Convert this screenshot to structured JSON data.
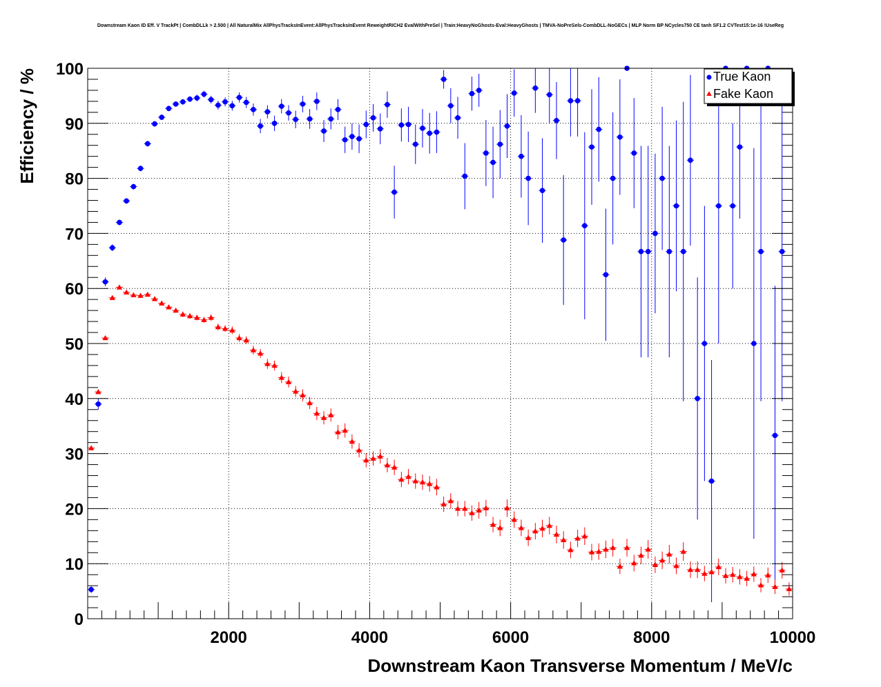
{
  "chart_data": {
    "type": "scatter",
    "title": "Downstream Kaon ID Eff. V TrackPt | CombDLLk > 2.500 | All NaturalMix AllPhysTracksInEvent:AllPhysTracksInEvent ReweightRICH2 EvalWithPreSel | Train:HeavyNoGhosts-Eval:HeavyGhosts | TMVA-NoPreSels-CombDLL-NoGECs | MLP Norm BP NCycles750 CE tanh SF1.2 CVTest15:1e-16 !UseReg",
    "xlabel": "Downstream Kaon Transverse Momentum / MeV/c",
    "ylabel": "Efficiency / %",
    "xlim": [
      0,
      10000
    ],
    "ylim": [
      0,
      100
    ],
    "x_ticks": [
      2000,
      4000,
      6000,
      8000,
      10000
    ],
    "y_ticks": [
      0,
      10,
      20,
      30,
      40,
      50,
      60,
      70,
      80,
      90,
      100
    ],
    "grid": true,
    "legend_position": "top-right",
    "series": [
      {
        "name": "True Kaon",
        "color": "#0000ff",
        "marker": "circle",
        "points": [
          [
            50,
            5.3,
            0.6
          ],
          [
            150,
            39.0,
            1.0
          ],
          [
            250,
            61.2,
            0.8
          ],
          [
            350,
            67.4,
            0.6
          ],
          [
            450,
            72.0,
            0.5
          ],
          [
            550,
            75.9,
            0.5
          ],
          [
            650,
            78.5,
            0.5
          ],
          [
            750,
            81.8,
            0.5
          ],
          [
            850,
            86.3,
            0.5
          ],
          [
            950,
            89.9,
            0.5
          ],
          [
            1050,
            91.1,
            0.5
          ],
          [
            1150,
            92.7,
            0.5
          ],
          [
            1250,
            93.5,
            0.5
          ],
          [
            1350,
            93.9,
            0.5
          ],
          [
            1450,
            94.4,
            0.5
          ],
          [
            1550,
            94.6,
            0.6
          ],
          [
            1650,
            95.3,
            0.6
          ],
          [
            1750,
            94.3,
            0.7
          ],
          [
            1850,
            93.3,
            0.8
          ],
          [
            1950,
            93.9,
            0.8
          ],
          [
            2050,
            93.2,
            0.9
          ],
          [
            2150,
            94.7,
            0.9
          ],
          [
            2250,
            93.8,
            1.0
          ],
          [
            2350,
            92.5,
            1.1
          ],
          [
            2450,
            89.5,
            1.3
          ],
          [
            2550,
            92.1,
            1.2
          ],
          [
            2650,
            90.0,
            1.4
          ],
          [
            2750,
            93.1,
            1.3
          ],
          [
            2850,
            91.9,
            1.4
          ],
          [
            2950,
            90.7,
            1.6
          ],
          [
            3050,
            93.5,
            1.5
          ],
          [
            3150,
            90.8,
            1.8
          ],
          [
            3250,
            94.0,
            1.6
          ],
          [
            3350,
            88.6,
            2.0
          ],
          [
            3450,
            90.8,
            1.9
          ],
          [
            3550,
            92.5,
            1.9
          ],
          [
            3650,
            87.0,
            2.4
          ],
          [
            3750,
            87.6,
            2.4
          ],
          [
            3850,
            87.2,
            2.6
          ],
          [
            3950,
            89.8,
            2.5
          ],
          [
            4050,
            91.0,
            2.5
          ],
          [
            4150,
            89.0,
            2.8
          ],
          [
            4250,
            93.4,
            2.4
          ],
          [
            4350,
            77.5,
            4.8
          ],
          [
            4450,
            89.7,
            3.0
          ],
          [
            4550,
            89.8,
            3.2
          ],
          [
            4650,
            86.2,
            3.6
          ],
          [
            4750,
            89.1,
            3.5
          ],
          [
            4850,
            88.2,
            3.7
          ],
          [
            4950,
            88.4,
            3.8
          ],
          [
            5050,
            98.0,
            1.7
          ],
          [
            5150,
            93.2,
            3.2
          ],
          [
            5250,
            91.0,
            3.8
          ],
          [
            5350,
            80.4,
            6.0
          ],
          [
            5450,
            95.4,
            3.1
          ],
          [
            5550,
            96.0,
            3.0
          ],
          [
            5650,
            84.6,
            6.0
          ],
          [
            5750,
            82.9,
            6.5
          ],
          [
            5850,
            86.2,
            6.2
          ],
          [
            5950,
            89.5,
            5.8
          ],
          [
            6050,
            95.5,
            4.3
          ],
          [
            6150,
            84.0,
            7.5
          ],
          [
            6250,
            80.0,
            8.5
          ],
          [
            6350,
            96.4,
            4.5
          ],
          [
            6450,
            77.8,
            9.5
          ],
          [
            6550,
            95.2,
            5.2
          ],
          [
            6650,
            90.5,
            7.0
          ],
          [
            6750,
            68.8,
            11.8
          ],
          [
            6850,
            94.1,
            6.5
          ],
          [
            6950,
            94.1,
            6.5
          ],
          [
            7050,
            71.4,
            17.0
          ],
          [
            7150,
            85.7,
            10.5
          ],
          [
            7250,
            88.9,
            9.5
          ],
          [
            7350,
            62.5,
            12.0
          ],
          [
            7450,
            80.0,
            12.0
          ],
          [
            7550,
            87.5,
            10.5
          ],
          [
            7650,
            100.0,
            0.0
          ],
          [
            7750,
            84.6,
            10.0
          ],
          [
            7850,
            66.7,
            19.2
          ],
          [
            7950,
            66.7,
            19.2
          ],
          [
            8050,
            70.0,
            14.5
          ],
          [
            8150,
            80.0,
            13.0
          ],
          [
            8250,
            66.7,
            19.2
          ],
          [
            8350,
            75.0,
            15.5
          ],
          [
            8450,
            66.7,
            27.2
          ],
          [
            8550,
            83.3,
            15.5
          ],
          [
            8650,
            40.0,
            22.0
          ],
          [
            8750,
            50.0,
            25.0
          ],
          [
            8850,
            25.0,
            22.0
          ],
          [
            8950,
            75.0,
            25.0
          ],
          [
            9050,
            100.0,
            0.0
          ],
          [
            9150,
            75.0,
            15.0
          ],
          [
            9250,
            85.7,
            13.0
          ],
          [
            9350,
            100.0,
            0.0
          ],
          [
            9450,
            50.0,
            35.5
          ],
          [
            9550,
            66.7,
            27.2
          ],
          [
            9650,
            100.0,
            0.0
          ],
          [
            9750,
            33.3,
            27.2
          ],
          [
            9850,
            66.7,
            27.2
          ]
        ]
      },
      {
        "name": "Fake Kaon",
        "color": "#ff0000",
        "marker": "triangle",
        "points": [
          [
            50,
            31.0,
            0.2
          ],
          [
            150,
            41.2,
            0.3
          ],
          [
            250,
            51.0,
            0.3
          ],
          [
            350,
            58.3,
            0.3
          ],
          [
            450,
            60.2,
            0.3
          ],
          [
            550,
            59.3,
            0.3
          ],
          [
            650,
            58.8,
            0.3
          ],
          [
            750,
            58.7,
            0.4
          ],
          [
            850,
            58.9,
            0.4
          ],
          [
            950,
            58.1,
            0.4
          ],
          [
            1050,
            57.3,
            0.4
          ],
          [
            1150,
            56.6,
            0.4
          ],
          [
            1250,
            56.0,
            0.4
          ],
          [
            1350,
            55.3,
            0.5
          ],
          [
            1450,
            55.0,
            0.5
          ],
          [
            1550,
            54.7,
            0.5
          ],
          [
            1650,
            54.3,
            0.5
          ],
          [
            1750,
            54.7,
            0.6
          ],
          [
            1850,
            53.0,
            0.6
          ],
          [
            1950,
            52.7,
            0.6
          ],
          [
            2050,
            52.4,
            0.7
          ],
          [
            2150,
            51.0,
            0.7
          ],
          [
            2250,
            50.6,
            0.7
          ],
          [
            2350,
            48.8,
            0.8
          ],
          [
            2450,
            48.2,
            0.8
          ],
          [
            2550,
            46.3,
            0.9
          ],
          [
            2650,
            46.0,
            0.9
          ],
          [
            2750,
            43.8,
            1.0
          ],
          [
            2850,
            43.0,
            1.0
          ],
          [
            2950,
            41.3,
            1.0
          ],
          [
            3050,
            40.6,
            1.1
          ],
          [
            3150,
            39.2,
            1.1
          ],
          [
            3250,
            37.3,
            1.2
          ],
          [
            3350,
            36.5,
            1.2
          ],
          [
            3450,
            37.0,
            1.2
          ],
          [
            3550,
            33.9,
            1.3
          ],
          [
            3650,
            34.2,
            1.3
          ],
          [
            3750,
            32.2,
            1.3
          ],
          [
            3850,
            30.6,
            1.3
          ],
          [
            3950,
            28.8,
            1.3
          ],
          [
            4050,
            29.1,
            1.3
          ],
          [
            4150,
            29.5,
            1.3
          ],
          [
            4250,
            27.9,
            1.3
          ],
          [
            4350,
            27.5,
            1.4
          ],
          [
            4450,
            25.3,
            1.4
          ],
          [
            4550,
            25.8,
            1.4
          ],
          [
            4650,
            25.0,
            1.4
          ],
          [
            4750,
            24.8,
            1.4
          ],
          [
            4850,
            24.5,
            1.4
          ],
          [
            4950,
            23.9,
            1.5
          ],
          [
            5050,
            20.8,
            1.4
          ],
          [
            5150,
            21.4,
            1.4
          ],
          [
            5250,
            20.0,
            1.4
          ],
          [
            5350,
            20.0,
            1.4
          ],
          [
            5450,
            19.2,
            1.4
          ],
          [
            5550,
            19.7,
            1.5
          ],
          [
            5650,
            20.1,
            1.5
          ],
          [
            5750,
            17.1,
            1.4
          ],
          [
            5850,
            16.5,
            1.5
          ],
          [
            5950,
            20.1,
            1.6
          ],
          [
            6050,
            18.0,
            1.5
          ],
          [
            6150,
            16.5,
            1.5
          ],
          [
            6250,
            14.7,
            1.5
          ],
          [
            6350,
            15.9,
            1.5
          ],
          [
            6450,
            16.4,
            1.6
          ],
          [
            6550,
            16.9,
            1.6
          ],
          [
            6650,
            15.3,
            1.6
          ],
          [
            6750,
            14.3,
            1.6
          ],
          [
            6850,
            12.5,
            1.5
          ],
          [
            6950,
            14.6,
            1.6
          ],
          [
            7050,
            15.0,
            1.6
          ],
          [
            7150,
            12.1,
            1.5
          ],
          [
            7250,
            12.2,
            1.5
          ],
          [
            7350,
            12.6,
            1.6
          ],
          [
            7450,
            12.9,
            1.6
          ],
          [
            7550,
            9.5,
            1.4
          ],
          [
            7650,
            12.9,
            1.6
          ],
          [
            7750,
            10.1,
            1.5
          ],
          [
            7850,
            11.5,
            1.6
          ],
          [
            7950,
            12.6,
            1.7
          ],
          [
            8050,
            9.8,
            1.5
          ],
          [
            8150,
            10.6,
            1.6
          ],
          [
            8250,
            11.7,
            1.7
          ],
          [
            8350,
            9.6,
            1.5
          ],
          [
            8450,
            12.2,
            1.7
          ],
          [
            8550,
            8.9,
            1.5
          ],
          [
            8650,
            8.9,
            1.5
          ],
          [
            8750,
            8.2,
            1.4
          ],
          [
            8850,
            8.5,
            1.5
          ],
          [
            8950,
            9.4,
            1.5
          ],
          [
            9050,
            7.8,
            1.4
          ],
          [
            9150,
            8.0,
            1.4
          ],
          [
            9250,
            7.6,
            1.4
          ],
          [
            9350,
            7.3,
            1.4
          ],
          [
            9450,
            8.1,
            1.4
          ],
          [
            9550,
            6.1,
            1.3
          ],
          [
            9650,
            7.9,
            1.4
          ],
          [
            9750,
            5.8,
            1.3
          ],
          [
            9850,
            8.8,
            1.5
          ],
          [
            9950,
            5.4,
            1.2
          ]
        ]
      }
    ]
  }
}
